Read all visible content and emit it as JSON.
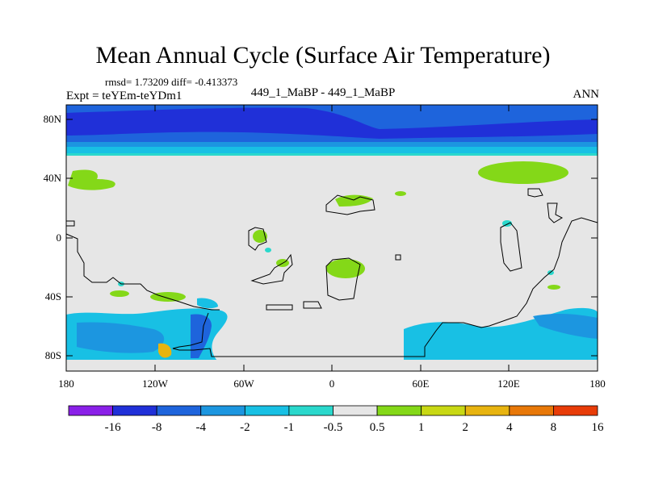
{
  "title": "Mean Annual Cycle (Surface Air Temperature)",
  "stats_line": "rmsd= 1.73209 diff= -0.413373",
  "expt_line": "Expt = teYEm-teYDm1",
  "center_label": "449_1_MaBP - 449_1_MaBP",
  "season": "ANN",
  "lat_labels": [
    "80N",
    "40N",
    "0",
    "40S",
    "80S"
  ],
  "lon_labels": [
    "180",
    "120W",
    "60W",
    "0",
    "60E",
    "120E",
    "180"
  ],
  "colorbar": {
    "labels": [
      "-16",
      "-8",
      "-4",
      "-2",
      "-1",
      "-0.5",
      "0.5",
      "1",
      "2",
      "4",
      "8",
      "16"
    ],
    "colors": [
      "#8a20e8",
      "#2030d8",
      "#1e64dc",
      "#1c96e0",
      "#18c0e4",
      "#2ad8cc",
      "#e6e6e6",
      "#84d818",
      "#c8d814",
      "#e8b410",
      "#e87808",
      "#e83c08"
    ]
  },
  "colors": {
    "background_land": "#e6e6e6",
    "deep_blue": "#2030d8",
    "blue": "#1e64dc",
    "light_blue": "#1c96e0",
    "cyan": "#18c0e4",
    "teal": "#2ad8cc",
    "green": "#84d818",
    "orange": "#e8b410"
  }
}
